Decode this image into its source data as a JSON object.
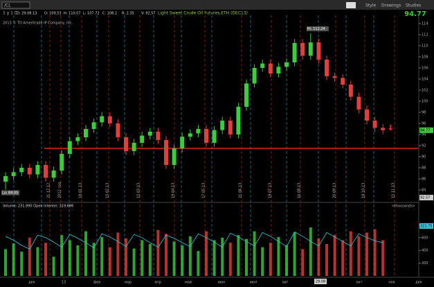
{
  "toolbar": {
    "symbol": "/CL",
    "buttons": [
      "Style",
      "Drawings",
      "Studies"
    ]
  },
  "header": {
    "period": "1 y 1 D",
    "title": "Light Sweet Crude Oil Futures,ETH (DEC13)",
    "fields": [
      "D: 29.08.13",
      "O: 109.53",
      "H: 110.07",
      "L: 107.72",
      "C: 108.2",
      "R: 2.35",
      "V: 92.57"
    ],
    "last": "94.77",
    "copyright": "2013 © TD Ameritrade IP Company, Inc."
  },
  "chart_data": {
    "type": "candlestick",
    "open": [
      85.5,
      86.5,
      87.2,
      88.0,
      86.8,
      88.5,
      86.2,
      87.5,
      90.5,
      92.8,
      93.5,
      95.0,
      96.2,
      97.3,
      96.0,
      93.5,
      91.0,
      92.5,
      93.8,
      94.5,
      93.0,
      88.5,
      91.5,
      93.6,
      94.2,
      95.0,
      92.5,
      94.8,
      96.5,
      94.0,
      99.0,
      103.2,
      106.0,
      106.8,
      105.0,
      106.2,
      107.0,
      110.5,
      108.2,
      110.6,
      107.5,
      104.5,
      104.2,
      103.0,
      100.8,
      98.5,
      96.5,
      95.2
    ],
    "high": [
      87.2,
      87.9,
      88.7,
      88.7,
      89.2,
      89.2,
      88.2,
      91.2,
      93.5,
      94.2,
      95.7,
      96.9,
      98.0,
      98.0,
      96.7,
      94.2,
      93.2,
      94.5,
      95.2,
      95.2,
      93.7,
      92.2,
      94.3,
      94.9,
      95.7,
      95.7,
      95.5,
      97.2,
      97.2,
      99.7,
      103.9,
      106.7,
      107.5,
      107.5,
      106.9,
      107.7,
      111.2,
      111.2,
      112.24,
      111.3,
      108.2,
      105.2,
      104.9,
      103.7,
      101.5,
      99.2,
      97.2,
      95.9
    ],
    "low": [
      84.05,
      85.8,
      86.5,
      86.1,
      86.1,
      85.5,
      85.5,
      86.8,
      89.8,
      92.1,
      92.8,
      94.3,
      95.5,
      95.3,
      92.8,
      90.3,
      90.3,
      91.8,
      93.1,
      92.3,
      87.8,
      87.8,
      90.8,
      92.9,
      93.5,
      91.8,
      91.8,
      94.1,
      93.3,
      93.3,
      98.3,
      102.5,
      105.3,
      104.3,
      104.3,
      105.5,
      106.3,
      107.5,
      107.5,
      106.8,
      103.8,
      103.5,
      102.3,
      100.1,
      97.8,
      95.8,
      94.5,
      94.07
    ],
    "close": [
      86.5,
      87.2,
      88.0,
      86.8,
      88.5,
      86.2,
      87.5,
      90.5,
      92.8,
      93.5,
      95.0,
      96.2,
      97.3,
      96.0,
      93.5,
      91.0,
      92.5,
      93.8,
      94.5,
      93.0,
      88.5,
      91.5,
      93.6,
      94.2,
      95.0,
      92.5,
      94.8,
      96.5,
      94.0,
      99.0,
      103.2,
      106.0,
      106.8,
      105.0,
      106.2,
      107.0,
      110.5,
      108.2,
      110.6,
      107.5,
      104.5,
      104.2,
      103.0,
      100.8,
      98.5,
      96.5,
      95.2,
      94.77
    ],
    "up_color": "#3ccd3c",
    "down_color": "#e0403c",
    "ylim": [
      83,
      115
    ],
    "yticks": [
      84,
      86,
      88,
      90,
      92,
      94,
      96,
      98,
      100,
      102,
      104,
      106,
      108,
      110,
      112,
      114
    ],
    "support_line": 91.5,
    "hi_label": "Hi: 112.24",
    "lo_label": "Lo: 84.05",
    "last_box": "94.77",
    "cursor_box": "92.57",
    "date_markers": [
      "21.12.12",
      "2012 год",
      "18.01.13",
      "15.02.13",
      "15.03.13",
      "19.04.13",
      "17.05.13",
      "21.06.13",
      "19.07.13",
      "16.08.13",
      "20.09.13",
      "18.10.13",
      "15.11.13"
    ],
    "months": [
      "дек",
      "13",
      "фев",
      "мар",
      "апр",
      "май",
      "июн",
      "июл",
      "авг",
      "окт",
      "ноя",
      "дек"
    ],
    "cursor_date": "29.08",
    "volume": {
      "title": "Volume: 231,990  Open Interest: 319,696",
      "units": "<thousands>",
      "values": [
        420,
        510,
        380,
        600,
        450,
        520,
        300,
        640,
        560,
        480,
        700,
        520,
        610,
        450,
        680,
        590,
        430,
        560,
        500,
        720,
        660,
        540,
        480,
        620,
        390,
        700,
        560,
        600,
        520,
        640,
        580,
        700,
        450,
        520,
        610,
        480,
        680,
        420,
        760,
        590,
        500,
        640,
        560,
        700,
        620,
        680,
        730,
        560
      ],
      "open_interest": [
        620,
        560,
        480,
        420,
        640,
        600,
        530,
        450,
        650,
        590,
        520,
        440,
        660,
        610,
        540,
        460,
        650,
        600,
        520,
        450,
        640,
        590,
        520,
        460,
        660,
        600,
        530,
        450,
        670,
        610,
        540,
        470,
        680,
        620,
        540,
        460,
        690,
        620,
        540,
        470,
        680,
        610,
        540,
        470,
        660,
        600,
        550,
        520
      ],
      "oi_color": "#33c8d8",
      "oi_box": "321.75",
      "ylim": [
        0,
        1000
      ],
      "yticks": [
        200,
        400,
        600,
        800
      ]
    }
  }
}
